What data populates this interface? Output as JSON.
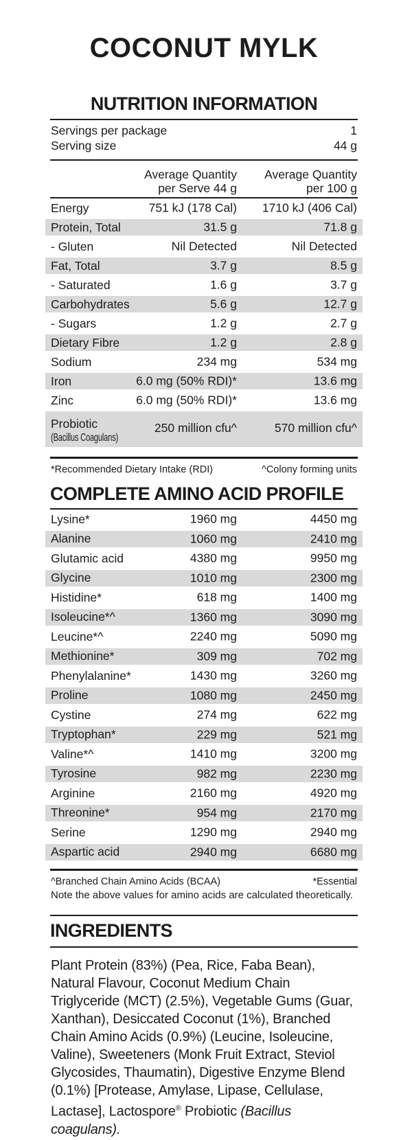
{
  "title": "COCONUT MYLK",
  "colors": {
    "text": "#1c1c1c",
    "shaded_row": "#d9d9d9",
    "rule": "#1c1c1c"
  },
  "nutrition": {
    "heading": "NUTRITION INFORMATION",
    "servings_label": "Servings per package",
    "servings_value": "1",
    "serving_size_label": "Serving size",
    "serving_size_value": "44 g",
    "col_headers": {
      "serve_line1": "Average Quantity",
      "serve_line2": "per Serve 44 g",
      "per100_line1": "Average Quantity",
      "per100_line2": "per 100 g"
    },
    "rows": [
      {
        "label": "Energy",
        "serve": "751 kJ (178 Cal)",
        "per100": "1710 kJ (406 Cal)",
        "shaded": false
      },
      {
        "label": "Protein, Total",
        "serve": "31.5 g",
        "per100": "71.8 g",
        "shaded": true
      },
      {
        "label": "- Gluten",
        "serve": "Nil Detected",
        "per100": "Nil Detected",
        "shaded": false
      },
      {
        "label": "Fat, Total",
        "serve": "3.7 g",
        "per100": "8.5 g",
        "shaded": true
      },
      {
        "label": "- Saturated",
        "serve": "1.6 g",
        "per100": "3.7 g",
        "shaded": false
      },
      {
        "label": "Carbohydrates",
        "serve": "5.6 g",
        "per100": "12.7 g",
        "shaded": true
      },
      {
        "label": "- Sugars",
        "serve": "1.2 g",
        "per100": "2.7 g",
        "shaded": false
      },
      {
        "label": "Dietary Fibre",
        "serve": "1.2 g",
        "per100": "2.8 g",
        "shaded": true
      },
      {
        "label": "Sodium",
        "serve": "234 mg",
        "per100": "534 mg",
        "shaded": false
      },
      {
        "label": "Iron",
        "serve": "6.0 mg (50% RDI)*",
        "per100": "13.6 mg",
        "shaded": true
      },
      {
        "label": "Zinc",
        "serve": "6.0 mg (50% RDI)*",
        "per100": "13.6 mg",
        "shaded": false
      },
      {
        "label": "Probiotic",
        "sublabel": "(Bacillus Coagulans)",
        "serve": "250 million cfu^",
        "per100": "570 million cfu^",
        "shaded": true
      }
    ],
    "footnote_left": "*Recommended Dietary Intake (RDI)",
    "footnote_right": "^Colony forming units"
  },
  "amino": {
    "heading": "COMPLETE AMINO ACID PROFILE",
    "rows": [
      {
        "label": "Lysine*",
        "serve": "1960 mg",
        "per100": "4450 mg",
        "shaded": false
      },
      {
        "label": "Alanine",
        "serve": "1060 mg",
        "per100": "2410 mg",
        "shaded": true
      },
      {
        "label": "Glutamic acid",
        "serve": "4380 mg",
        "per100": "9950 mg",
        "shaded": false
      },
      {
        "label": "Glycine",
        "serve": "1010 mg",
        "per100": "2300 mg",
        "shaded": true
      },
      {
        "label": "Histidine*",
        "serve": "618 mg",
        "per100": "1400 mg",
        "shaded": false
      },
      {
        "label": "Isoleucine*^",
        "serve": "1360 mg",
        "per100": "3090 mg",
        "shaded": true
      },
      {
        "label": "Leucine*^",
        "serve": "2240 mg",
        "per100": "5090 mg",
        "shaded": false
      },
      {
        "label": "Methionine*",
        "serve": "309 mg",
        "per100": "702 mg",
        "shaded": true
      },
      {
        "label": "Phenylalanine*",
        "serve": "1430 mg",
        "per100": "3260 mg",
        "shaded": false
      },
      {
        "label": "Proline",
        "serve": "1080 mg",
        "per100": "2450 mg",
        "shaded": true
      },
      {
        "label": "Cystine",
        "serve": "274 mg",
        "per100": "622 mg",
        "shaded": false
      },
      {
        "label": "Tryptophan*",
        "serve": "229 mg",
        "per100": "521 mg",
        "shaded": true
      },
      {
        "label": "Valine*^",
        "serve": "1410 mg",
        "per100": "3200 mg",
        "shaded": false
      },
      {
        "label": "Tyrosine",
        "serve": "982 mg",
        "per100": "2230 mg",
        "shaded": true
      },
      {
        "label": "Arginine",
        "serve": "2160 mg",
        "per100": "4920 mg",
        "shaded": false
      },
      {
        "label": "Threonine*",
        "serve": "954 mg",
        "per100": "2170 mg",
        "shaded": true
      },
      {
        "label": "Serine",
        "serve": "1290 mg",
        "per100": "2940 mg",
        "shaded": false
      },
      {
        "label": "Aspartic acid",
        "serve": "2940 mg",
        "per100": "6680 mg",
        "shaded": true
      }
    ],
    "footnote_left": "^Branched Chain Amino Acids (BCAA)",
    "footnote_right": "*Essential",
    "note": "Note the above values for amino acids are calculated theoretically."
  },
  "ingredients": {
    "heading": "INGREDIENTS",
    "text_main": "Plant Protein (83%) (Pea, Rice, Faba Bean), Natural Flavour, Coconut Medium Chain Triglyceride (MCT) (2.5%), Vegetable Gums (Guar, Xanthan), Desiccated Coconut (1%), Branched Chain Amino Acids (0.9%) (Leucine, Isoleucine, Valine), Sweeteners (Monk Fruit Extract, Steviol Glycosides, Thaumatin), Digestive Enzyme Blend (0.1%) [Protease, Amylase, Lipase, Cellulase, Lactase], Lactospore",
    "text_reg": "®",
    "text_after_reg": " Probiotic ",
    "text_italic": "(Bacillus coagulans)."
  }
}
